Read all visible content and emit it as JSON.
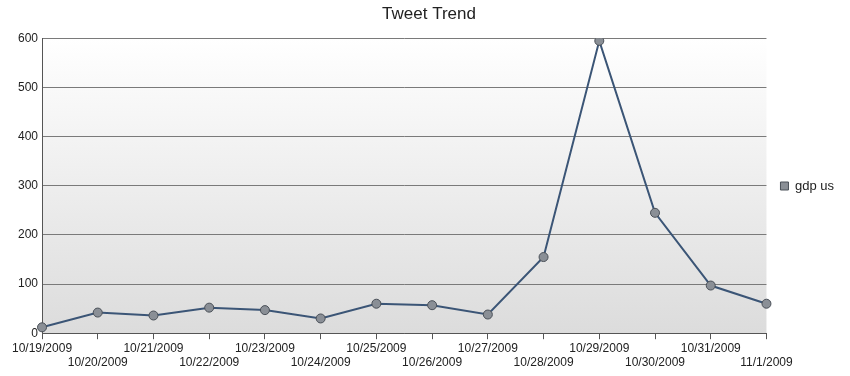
{
  "chart_data": {
    "type": "line",
    "title": "Tweet Trend",
    "categories": [
      "10/19/2009",
      "10/20/2009",
      "10/21/2009",
      "10/22/2009",
      "10/23/2009",
      "10/24/2009",
      "10/25/2009",
      "10/26/2009",
      "10/27/2009",
      "10/28/2009",
      "10/29/2009",
      "10/30/2009",
      "10/31/2009",
      "11/1/2009"
    ],
    "series": [
      {
        "name": "gdp us",
        "color": "#3b5576",
        "marker": "circle",
        "values": [
          12,
          42,
          36,
          52,
          47,
          30,
          60,
          57,
          38,
          155,
          595,
          245,
          97,
          60
        ]
      }
    ],
    "ylim": [
      0,
      600
    ],
    "yticks": [
      0,
      100,
      200,
      300,
      400,
      500,
      600
    ],
    "grid": true,
    "legend": "right"
  }
}
